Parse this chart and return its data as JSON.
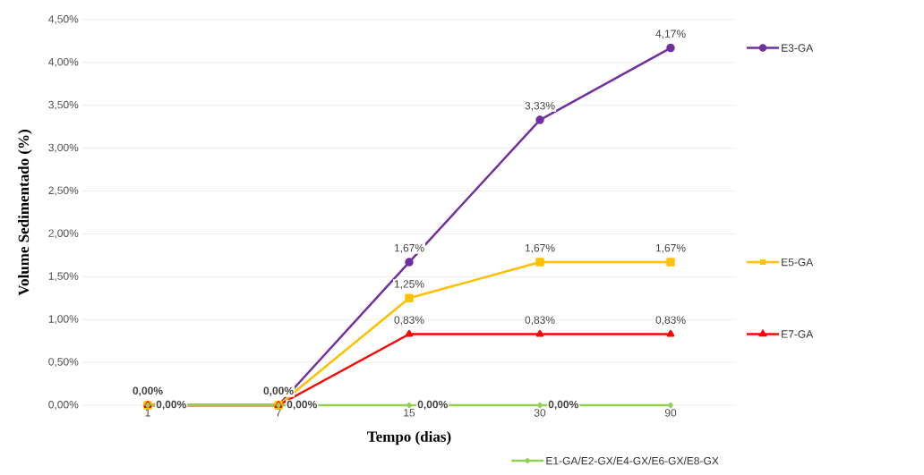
{
  "chart_data": {
    "type": "line",
    "xlabel": "Tempo (dias)",
    "ylabel": "Volume Sedimentado (%)",
    "categories": [
      "1",
      "7",
      "15",
      "30",
      "90"
    ],
    "series": [
      {
        "name": "E3-GA",
        "color": "#7030a0",
        "marker": "circle",
        "values": [
          0,
          0,
          1.67,
          3.33,
          4.17
        ],
        "value_labels": [
          "0,00%",
          "0,00%",
          "1,67%",
          "3,33%",
          "4,17%"
        ]
      },
      {
        "name": "E5-GA",
        "color": "#ffc000",
        "marker": "square",
        "values": [
          0,
          0,
          1.25,
          1.67,
          1.67
        ],
        "value_labels": [
          null,
          null,
          "1,25%",
          "1,67%",
          "1,67%"
        ]
      },
      {
        "name": "E7-GA",
        "color": "#ff0000",
        "marker": "triangle",
        "values": [
          0,
          0,
          0.83,
          0.83,
          0.83
        ],
        "value_labels": [
          null,
          null,
          "0,83%",
          "0,83%",
          "0,83%"
        ]
      },
      {
        "name": "E1-GA/E2-GX/E4-GX/E6-GX/E8-GX",
        "color": "#92d050",
        "marker": "diamond",
        "values": [
          0,
          0,
          0,
          0,
          0
        ],
        "value_labels": [
          "0,00%",
          "0,00%",
          "0,00%",
          "0,00%",
          null
        ]
      }
    ],
    "ylim": [
      0,
      4.5
    ],
    "yticks": [
      {
        "value": 0,
        "label": "0,00%"
      },
      {
        "value": 0.5,
        "label": "0,50%"
      },
      {
        "value": 1,
        "label": "1,00%"
      },
      {
        "value": 1.5,
        "label": "1,50%"
      },
      {
        "value": 2,
        "label": "2,00%"
      },
      {
        "value": 2.5,
        "label": "2,50%"
      },
      {
        "value": 3,
        "label": "3,00%"
      },
      {
        "value": 3.5,
        "label": "3,50%"
      },
      {
        "value": 4,
        "label": "4,00%"
      },
      {
        "value": 4.5,
        "label": "4,50%"
      }
    ],
    "grid": "y",
    "legend": "right",
    "line_style": "solid"
  }
}
